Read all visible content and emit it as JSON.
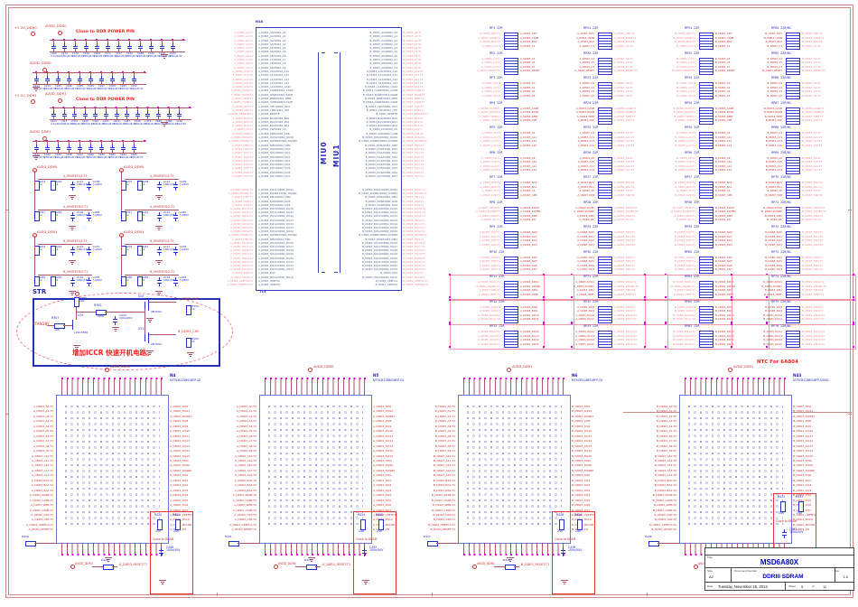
{
  "sheet": {
    "title_label": "Title",
    "title": "MSD6A80X",
    "size_label": "Size",
    "size": "A2",
    "doc_label": "Document Number",
    "doc_number": "DDRIII SDRAM",
    "rev_label": "Rev",
    "rev": "1.0",
    "date_label": "Date",
    "date": "Tuesday, November 26, 2013",
    "sheet_label": "Sheet",
    "sheet_no": "5",
    "of_label": "of",
    "sheet_total": "11"
  },
  "notes": {
    "power_pin": "Close to DDR POWER PIN",
    "ntc": "NTC For 6A804",
    "close_dram": "Close to DRAM",
    "str_cn": "增加ICCR 快速开机电路。"
  },
  "str": {
    "label": "STR",
    "standby": "STANDBY",
    "net_top": "A_DDR3_CKE",
    "net_bot": "B_DDR3_CKE",
    "parts": {
      "r307": [
        "R307",
        "15k"
      ],
      "r306": [
        "R306",
        "10k"
      ],
      "r305": [
        "R305",
        "100k"
      ],
      "c343": [
        "C343",
        "100n/16V"
      ],
      "v19": [
        "V19",
        "L2SC3356"
      ],
      "v20": [
        "V20",
        "2N7002"
      ],
      "v21": [
        "V21",
        "2N7002"
      ],
      "r304": [
        "R304",
        "1k"
      ],
      "r303": [
        "R303",
        "1k"
      ]
    }
  },
  "cap_banks": [
    {
      "pwr1": "+1.5V_DDR0",
      "pwr2": "AVDD_DDR0",
      "note": true,
      "caps": [
        [
          "C160",
          "4.7u/16V"
        ],
        [
          "C170",
          "100n/6.3V"
        ],
        [
          "C176",
          "100n/6.3V"
        ],
        [
          "C194",
          "100n/6.3V"
        ],
        [
          "C204",
          "100n/6.3V"
        ],
        [
          "C171",
          "100n/6.3V"
        ],
        [
          "C197",
          "100n/6.3V"
        ],
        [
          "C192",
          "100n/6.3V"
        ],
        [
          "C188",
          "100n/6.3V"
        ],
        [
          "C182",
          "100n/6.3V"
        ],
        [
          "C190",
          "100n/6.3V"
        ],
        [
          "C187",
          "100n/6.3V"
        ]
      ]
    },
    {
      "pwr2": "AVDD_DDR0",
      "note": false,
      "caps": [
        [
          "C213",
          "100n/6.3V"
        ],
        [
          "C214",
          "100n/6.3V"
        ],
        [
          "C206",
          "100n/6.3V"
        ],
        [
          "C196",
          "100n/6.3V"
        ],
        [
          "C186",
          "100n/6.3V"
        ],
        [
          "C189",
          "100n/6.3V"
        ],
        [
          "C202",
          "100n/6.3V"
        ],
        [
          "C208",
          "100n/6.3V"
        ],
        [
          "C209",
          "100n/6.3V"
        ],
        [
          "C212",
          "100n/6.3V"
        ]
      ]
    },
    {
      "pwr1": "+1.5V_DDR1",
      "pwr2": "AVDD_DDR1",
      "note": true,
      "caps": [
        [
          "C413",
          "4.7u/16V"
        ],
        [
          "C414",
          "100n/6.3V"
        ],
        [
          "C473",
          "100n/6.3V"
        ],
        [
          "C439",
          "100n/6.3V"
        ],
        [
          "C415",
          "100n/6.3V"
        ],
        [
          "C471",
          "100n/6.3V"
        ],
        [
          "C479",
          "100n/6.3V"
        ],
        [
          "C487",
          "100n/6.3V"
        ],
        [
          "C418",
          "100n/6.3V"
        ],
        [
          "C478",
          "100n/6.3V"
        ],
        [
          "C480",
          "100n/6.3V"
        ],
        [
          "C488",
          "100n/6.3V"
        ],
        [
          "C126",
          "10u/16V"
        ]
      ]
    },
    {
      "pwr2": "AVDD_DDR1",
      "note": false,
      "caps": [
        [
          "C441",
          "100n/6.3V"
        ],
        [
          "C344",
          "100n/6.3V"
        ],
        [
          "C345",
          "100n/6.3V"
        ],
        [
          "C346",
          "100n/6.3V"
        ],
        [
          "C442",
          "100n/6.3V"
        ],
        [
          "C469",
          "100n/6.3V"
        ],
        [
          "C486",
          "100n/6.3V"
        ],
        [
          "C483",
          "100n/6.3V"
        ],
        [
          "C484",
          "100n/6.3V"
        ],
        [
          "C485",
          "100n/6.3V"
        ]
      ]
    }
  ],
  "vref": {
    "rv": "1k",
    "cv1": "100n/16V",
    "cv2": "1u/50V",
    "groups": [
      {
        "pwr": "AVDD_DDR0",
        "cells": [
          {
            "r1": "R215",
            "r2": "R216",
            "c1": "C111",
            "c2": "C108",
            "net": "A_MIVREFCA-T1"
          },
          {
            "r1": "R217",
            "r2": "R218",
            "c1": "C106",
            "c2": "C204",
            "net": "A_MIVREFDQ-T1"
          }
        ]
      },
      {
        "pwr": "AVDD_DDR0",
        "cells": [
          {
            "r1": "R207",
            "r2": "R208",
            "c1": "C112",
            "c2": "C209",
            "net": "A_MIVREFCA-T2"
          },
          {
            "r1": "R211",
            "r2": "R212",
            "c1": "C115",
            "c2": "C210",
            "net": "A_MIVREFDQ-T2"
          }
        ]
      },
      {
        "pwr": "AVDD_DDR1",
        "cells": [
          {
            "r1": "R242",
            "r2": "R243",
            "c1": "C114",
            "c2": "C231",
            "net": "B_MIVREFCA-T1"
          },
          {
            "r1": "R244",
            "r2": "R245",
            "c1": "C116",
            "c2": "C232",
            "net": "B_MIVREFDQ-T1"
          }
        ]
      },
      {
        "pwr": "AVDD_DDR1",
        "cells": [
          {
            "r1": "R246",
            "r2": "R247",
            "c1": "C117",
            "c2": "C233",
            "net": "B_MIVREFCA-T2"
          },
          {
            "r1": "R248",
            "r2": "R249",
            "c1": "C118",
            "c2": "C234",
            "net": "B_MIVREFDQ-T2"
          }
        ]
      }
    ]
  },
  "miu": {
    "ref_top": "N1A",
    "ref_bot": "T13",
    "label0": "MIU0",
    "label1": "MIU1",
    "left_top": [
      "A_DDR3_A0/DDR2_A0",
      "A_DDR3_A1/DDR2_A1",
      "A_DDR3_A2/DDR2_A2",
      "A_DDR3_A3/DDR2_A3",
      "A_DDR3_A4/DDR2_A4",
      "A_DDR3_A5/DDR2_A5",
      "A_DDR3_A6/DDR2_A6",
      "A_DDR3_A7/DDR2_A7",
      "A_DDR3_A8/DDR2_A8",
      "A_DDR3_A9/DDR2_A9",
      "A_DDR3_A10/DDR2_A10",
      "A_DDR3_A11/DDR2_A11",
      "A_DDR3_A12/DDR2_A12",
      "A_DDR3_A13/DDR2_A13",
      "A_DDR3_A14/DDR2_CAS2",
      "A_DDR3_CASB/DDR2_CASB",
      "A_DDR3_RASB/DDR2_RASB",
      "A_DDR3_WEB/DDR2_WEB",
      "A_DDR3_CS0B/DDR2_CS0B",
      "A_DDR3_ODT/DDR2_ODT",
      "A_DDR3_CKE/DDR2_CKE",
      "A_DDR3_RESETB",
      "A_DDR3_BA0/DDR2_BA0",
      "A_DDR3_BA1/DDR2_BA1",
      "A_DDR3_BA2/DDR2_BA2",
      "A_DDR3_CK/DDR2_CK",
      "A_DDR3_CKB/DDR2_CKB",
      "A_DDR3_DQS0/DDR2_DQS0",
      "A_DDR3_DQSB0/DDR2_DQSB0",
      "A_DDR3_DM0/DDR2_DM0",
      "A_DDR3_DQ0/DDR2_DQ0",
      "A_DDR3_DQ1/DDR2_DQ1",
      "A_DDR3_DQ2/DDR2_DQ2",
      "A_DDR3_DQ3/DDR2_DQ3",
      "A_DDR3_DQ4/DDR2_DQ4",
      "A_DDR3_DQ5/DDR2_DQ5",
      "A_DDR3_DQ6/DDR2_DQ6",
      "A_DDR3_DQ7/DDR2_DQ7"
    ],
    "left_bot": [
      "A_DDR3_DQS1/DDR2_DQS1",
      "A_DDR3_DQSB1/DDR2_DQSB1",
      "A_DDR3_DM1/DDR2_DM1",
      "A_DDR3_DQ8/DDR2_DQ8",
      "A_DDR3_DQ9/DDR2_DQ9",
      "A_DDR3_DQ10/DDR2_DQ10",
      "A_DDR3_DQ11/DDR2_DQ11",
      "A_DDR3_DQ12/DDR2_DQ12",
      "A_DDR3_DQ13/DDR2_DQ13",
      "A_DDR3_DQ14/DDR2_DQ14",
      "A_DDR3_DQ15/DDR2_DQ15",
      "A_DDR3_DQS2/DDR2_DQS2",
      "A_DDR3_DQSB2/DDR2_DQSB2",
      "A_DDR3_DM2/DDR2_DM2",
      "A_DDR3_DQ16/DDR2_DQ16",
      "A_DDR3_DQ17/DDR2_DQ17",
      "A_DDR3_DQ18/DDR2_DQ18",
      "A_DDR3_DQ19/DDR2_DQ19",
      "A_DDR3_DQ20/DDR2_DQ20",
      "A_DDR3_DQ21/DDR2_DQ21",
      "A_DDR3_DQ22/DDR2_DQ22",
      "A_DDR3_DQ23/DDR2_DQ23",
      "A_DDR3_ZQ0",
      "A_DDR3_MCLK/DDR2_MCLK",
      "A_DDR3_VREFCA",
      "A_DDR3_VREFDQ"
    ]
  },
  "packs": {
    "bases": [
      "ODT",
      "CS0B",
      "BA2",
      "A1",
      "A3",
      "A5",
      "A7",
      "RESET",
      "A0",
      "A2",
      "A4",
      "A6",
      "CASB",
      "RASB",
      "WEB",
      "CKE",
      "A9",
      "A11",
      "A13",
      "A15",
      "A8",
      "A10",
      "A12",
      "A14",
      "BA0",
      "BA1",
      "CK",
      "CKB",
      "DQS0",
      "DQSB0",
      "DM0",
      "ZQ",
      "DQ0",
      "DQ1",
      "DQ2",
      "DQ3",
      "DQ4",
      "DQ5",
      "DQ6",
      "DQ7",
      "DQS1",
      "DQSB1",
      "DM1",
      "VREF",
      "DQ8",
      "DQ9",
      "DQ10",
      "DQ11",
      "DQ12",
      "DQ13",
      "DQ14",
      "DQ15"
    ],
    "quads": [
      {
        "ids": [
          "RP1",
          "RP2",
          "RP3",
          "RP4",
          "RP5",
          "RP6",
          "RP7",
          "RP8",
          "RP9",
          "RP10",
          "RP11",
          "RP12",
          "RP13"
        ],
        "val": "22R",
        "prefix": "A_DDR3_",
        "lsuf": "-T1",
        "rsuf": ""
      },
      {
        "ids": [
          "RP21",
          "RP22",
          "RP23",
          "RP24",
          "RP25",
          "RP26",
          "RP27",
          "RP28",
          "RP29",
          "RP30",
          "RP31",
          "RP32",
          "RP33"
        ],
        "val": "22R",
        "prefix": "A_DDR3_",
        "lsuf": "",
        "rsuf": "-T2"
      },
      {
        "ids": [
          "RP51",
          "RP52",
          "RP53",
          "RP54",
          "RP55",
          "RP56",
          "RP57",
          "RP58",
          "RP59",
          "RP60",
          "RP61",
          "RP62",
          "RP63"
        ],
        "val": "22R",
        "prefix": "B_DDR3_",
        "lsuf": "-T1",
        "rsuf": ""
      },
      {
        "ids": [
          "RP64",
          "RP65",
          "RP66",
          "RP67",
          "RP68",
          "RP69",
          "RP70",
          "RP71",
          "RP72",
          "RP73",
          "RP74",
          "RP75",
          "RP76"
        ],
        "val": "22R/NC",
        "prefix": "B_DDR3_",
        "lsuf": "",
        "rsuf": "-T2"
      }
    ]
  },
  "chip_pins": {
    "left": [
      "A0",
      "A1",
      "A2",
      "A3",
      "A4",
      "A5",
      "A6",
      "A7",
      "A8",
      "A9",
      "A10",
      "A11",
      "A12",
      "A13",
      "A14",
      "BA0",
      "BA1",
      "BA2",
      "RASB",
      "CASB",
      "WEB",
      "CS0B",
      "ODT",
      "CKE",
      "VREFCA",
      "RESET"
    ],
    "right": [
      "DM1",
      "DQS1",
      "DQSB1",
      "DQ8",
      "DQ9",
      "DQ10",
      "DQ11",
      "DQ12",
      "DQ13",
      "DQ14",
      "DQ15",
      "DM0",
      "DQS0",
      "DQSB0",
      "DQ0",
      "DQ1",
      "DQ2",
      "DQ3",
      "DQ4",
      "DQ5",
      "DQ6",
      "DQ7",
      "VREFDQ",
      "MCLK",
      "MCLKB",
      "ZQ"
    ]
  },
  "chips": [
    {
      "ref": "N4",
      "part": "NT5CB128M16FP-DI",
      "pwr": "AVDD_DDR0",
      "prefix": "A_DDR3_",
      "suffix": "-T1",
      "reset_net": "A_DDR3_RESET-T1",
      "reset_res": "R426",
      "side_res": "R418",
      "zq": {
        "r1": "R420",
        "r2": "R421",
        "rv": "240",
        "cap": "C446",
        "cv": "100n/50V"
      }
    },
    {
      "ref": "N5",
      "part": "NT5CB128M16FP-DI",
      "pwr": "AVDD_DDR0",
      "prefix": "A_DDR3_",
      "suffix": "-T2",
      "reset_net": "A_DDR3_RESET-T2",
      "reset_res": "R435",
      "side_res": "R431",
      "zq": {
        "r1": "R424",
        "r2": "R425",
        "rv": "240",
        "cap": "C452",
        "cv": "100n/50V"
      }
    },
    {
      "ref": "N6",
      "part": "NT5CB128M16FP-DI",
      "pwr": "AVDD_DDR1",
      "prefix": "B_DDR3_",
      "suffix": "-T1",
      "reset_net": "B_DDR3_RESET-T1",
      "reset_res": "R444",
      "side_res": "R427",
      "zq": {
        "r1": "R428",
        "r2": "R429",
        "rv": "240",
        "cap": "C478",
        "cv": "100n/50V"
      }
    },
    {
      "ref": "N43",
      "part": "NT5CB128M16FP-DI/NC",
      "pwr": "AVDD_DDR1",
      "prefix": "B_DDR3_",
      "suffix": "-T2",
      "reset_net": "B_DDR3_RESET-T2",
      "reset_res": "R453",
      "side_res": "R436",
      "note": "NTC For 6A804",
      "zq": {
        "r1": "R432",
        "r2": "R433",
        "rv": "240",
        "cap": "C502",
        "cv": "100n/50V"
      }
    }
  ],
  "colors": {
    "accent_blue": "#2222bb",
    "net_red": "#cc3333",
    "net_pink": "#ee8899",
    "note_red": "#ff2020",
    "wire": "#aa5566",
    "junction": "#dd00dd",
    "frame": "#cc8888",
    "title_blue": "#0000bb"
  }
}
